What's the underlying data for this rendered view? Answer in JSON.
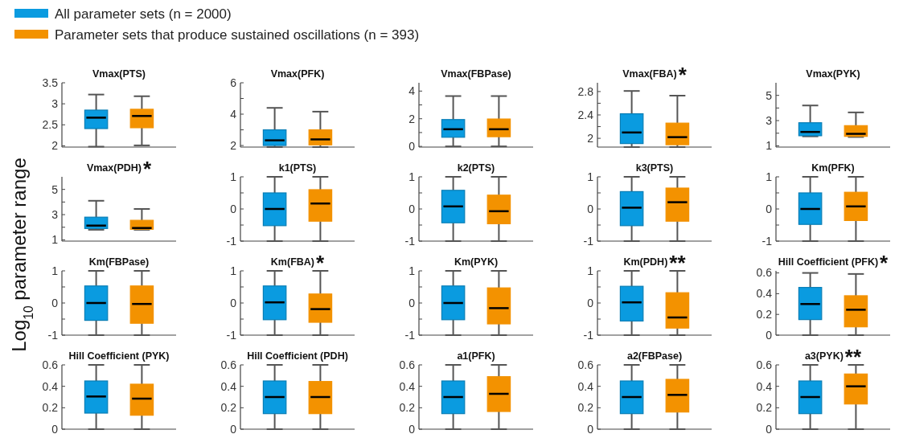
{
  "chart_data": [
    {
      "type": "box",
      "title": "Vmax(PTS)",
      "ylabel": "Log$_{10}$ parameter range",
      "legend": "top right",
      "categories": [
        null
      ],
      "ylim": [
        1.97,
        3.5
      ],
      "yticks": [
        2,
        2.5,
        3,
        3.5
      ],
      "series": [
        {
          "name": "All parameter sets (n = 2000)",
          "color": "#0a9be0",
          "boxes": [
            {
              "low": 1.98,
              "q1": 2.41,
              "median": 2.67,
              "q3": 2.85,
              "high": 3.22
            }
          ]
        },
        {
          "name": "Parameter sets that produce sustained oscillations (n = 393)",
          "color": "#f39200",
          "boxes": [
            {
              "low": 2.01,
              "q1": 2.43,
              "median": 2.71,
              "q3": 2.87,
              "high": 3.18
            }
          ]
        }
      ]
    },
    {
      "type": "box",
      "title": "Vmax(PFK)",
      "categories": [
        null
      ],
      "ylim": [
        1.9,
        6
      ],
      "yticks": [
        2,
        {
          "value": 3,
          "label": null
        },
        4,
        {
          "value": 5,
          "label": null
        },
        6
      ],
      "series": [
        {
          "color": "#0a9be0",
          "boxes": [
            {
              "low": 1.9,
              "q1": 2.0,
              "median": 2.33,
              "q3": 3.0,
              "high": 4.4
            }
          ]
        },
        {
          "color": "#f39200",
          "boxes": [
            {
              "low": 1.9,
              "q1": 2.04,
              "median": 2.39,
              "q3": 3.0,
              "high": 4.16
            }
          ]
        }
      ]
    },
    {
      "type": "box",
      "title": "Vmax(FBPase)",
      "categories": [
        null
      ],
      "ylim": [
        -0.05,
        4.6
      ],
      "yticks": [
        0,
        {
          "value": 1,
          "label": null
        },
        2,
        {
          "value": 3,
          "label": null
        },
        4
      ],
      "series": [
        {
          "color": "#0a9be0",
          "boxes": [
            {
              "low": 0,
              "q1": 0.66,
              "median": 1.24,
              "q3": 1.94,
              "high": 3.64
            }
          ]
        },
        {
          "color": "#f39200",
          "boxes": [
            {
              "low": 0,
              "q1": 0.7,
              "median": 1.24,
              "q3": 1.98,
              "high": 3.64
            }
          ]
        }
      ]
    },
    {
      "type": "box",
      "title": "Vmax(FBA)",
      "annotations": [
        "*"
      ],
      "categories": [
        null
      ],
      "ylim": [
        1.85,
        2.95
      ],
      "yticks": [
        2,
        {
          "value": 2.2,
          "label": null
        },
        2.4,
        {
          "value": 2.6,
          "label": null
        },
        2.8
      ],
      "series": [
        {
          "color": "#0a9be0",
          "boxes": [
            {
              "low": 1.85,
              "q1": 1.91,
              "median": 2.1,
              "q3": 2.42,
              "high": 2.81
            }
          ]
        },
        {
          "color": "#f39200",
          "boxes": [
            {
              "low": 1.85,
              "q1": 1.89,
              "median": 2.02,
              "q3": 2.26,
              "high": 2.73
            }
          ]
        }
      ]
    },
    {
      "type": "box",
      "title": "Vmax(PYK)",
      "categories": [
        null
      ],
      "ylim": [
        0.9,
        6
      ],
      "yticks": [
        1,
        {
          "value": 2,
          "label": null
        },
        3,
        {
          "value": 4,
          "label": null
        },
        5
      ],
      "series": [
        {
          "color": "#0a9be0",
          "boxes": [
            {
              "low": 1.75,
              "q1": 1.8,
              "median": 2.1,
              "q3": 2.83,
              "high": 4.2
            }
          ]
        },
        {
          "color": "#f39200",
          "boxes": [
            {
              "low": 1.7,
              "q1": 1.75,
              "median": 1.95,
              "q3": 2.6,
              "high": 3.65
            }
          ]
        }
      ]
    },
    {
      "type": "box",
      "title": "Vmax(PDH)",
      "annotations": [
        "*"
      ],
      "categories": [
        null
      ],
      "ylim": [
        0.9,
        6
      ],
      "yticks": [
        1,
        {
          "value": 2,
          "label": null
        },
        3,
        {
          "value": 4,
          "label": null
        },
        5
      ],
      "series": [
        {
          "color": "#0a9be0",
          "boxes": [
            {
              "low": 1.8,
              "q1": 1.9,
              "median": 2.13,
              "q3": 2.8,
              "high": 4.1
            }
          ]
        },
        {
          "color": "#f39200",
          "boxes": [
            {
              "low": 1.8,
              "q1": 1.84,
              "median": 1.94,
              "q3": 2.55,
              "high": 3.45
            }
          ]
        }
      ]
    },
    {
      "type": "box",
      "title": "k1(PTS)",
      "categories": [
        null
      ],
      "ylim": [
        -1,
        1
      ],
      "yticks": [
        -1,
        {
          "value": -0.5,
          "label": null
        },
        0,
        {
          "value": 0.5,
          "label": null
        },
        1
      ],
      "series": [
        {
          "color": "#0a9be0",
          "boxes": [
            {
              "low": -1,
              "q1": -0.52,
              "median": 0,
              "q3": 0.5,
              "high": 1
            }
          ]
        },
        {
          "color": "#f39200",
          "boxes": [
            {
              "low": -1,
              "q1": -0.38,
              "median": 0.17,
              "q3": 0.6,
              "high": 1
            }
          ]
        }
      ]
    },
    {
      "type": "box",
      "title": "k2(PTS)",
      "categories": [
        null
      ],
      "ylim": [
        -1,
        1
      ],
      "yticks": [
        -1,
        {
          "value": -0.5,
          "label": null
        },
        0,
        {
          "value": 0.5,
          "label": null
        },
        1
      ],
      "series": [
        {
          "color": "#0a9be0",
          "boxes": [
            {
              "low": -1,
              "q1": -0.43,
              "median": 0.08,
              "q3": 0.58,
              "high": 1
            }
          ]
        },
        {
          "color": "#f39200",
          "boxes": [
            {
              "low": -1,
              "q1": -0.46,
              "median": -0.07,
              "q3": 0.43,
              "high": 1
            }
          ]
        }
      ]
    },
    {
      "type": "box",
      "title": "k3(PTS)",
      "categories": [
        null
      ],
      "ylim": [
        -1,
        1
      ],
      "yticks": [
        -1,
        {
          "value": -0.5,
          "label": null
        },
        0,
        {
          "value": 0.5,
          "label": null
        },
        1
      ],
      "series": [
        {
          "color": "#0a9be0",
          "boxes": [
            {
              "low": -1,
              "q1": -0.52,
              "median": 0.04,
              "q3": 0.54,
              "high": 1
            }
          ]
        },
        {
          "color": "#f39200",
          "boxes": [
            {
              "low": -1,
              "q1": -0.38,
              "median": 0.21,
              "q3": 0.65,
              "high": 1
            }
          ]
        }
      ]
    },
    {
      "type": "box",
      "title": "Km(PFK)",
      "categories": [
        null
      ],
      "ylim": [
        -1,
        1
      ],
      "yticks": [
        -1,
        {
          "value": -0.5,
          "label": null
        },
        0,
        {
          "value": 0.5,
          "label": null
        },
        1
      ],
      "series": [
        {
          "color": "#0a9be0",
          "boxes": [
            {
              "low": -1,
              "q1": -0.48,
              "median": 0,
              "q3": 0.5,
              "high": 1
            }
          ]
        },
        {
          "color": "#f39200",
          "boxes": [
            {
              "low": -1,
              "q1": -0.36,
              "median": 0.08,
              "q3": 0.52,
              "high": 1
            }
          ]
        }
      ]
    },
    {
      "type": "box",
      "title": "Km(FBPase)",
      "categories": [
        null
      ],
      "ylim": [
        -1,
        1
      ],
      "yticks": [
        -1,
        {
          "value": -0.5,
          "label": null
        },
        0,
        {
          "value": 0.5,
          "label": null
        },
        1
      ],
      "series": [
        {
          "color": "#0a9be0",
          "boxes": [
            {
              "low": -1,
              "q1": -0.54,
              "median": 0,
              "q3": 0.53,
              "high": 1
            }
          ]
        },
        {
          "color": "#f39200",
          "boxes": [
            {
              "low": -1,
              "q1": -0.63,
              "median": -0.03,
              "q3": 0.53,
              "high": 1
            }
          ]
        }
      ]
    },
    {
      "type": "box",
      "title": "Km(FBA)",
      "annotations": [
        "*"
      ],
      "categories": [
        null
      ],
      "ylim": [
        -1,
        1
      ],
      "yticks": [
        -1,
        {
          "value": -0.5,
          "label": null
        },
        0,
        {
          "value": 0.5,
          "label": null
        },
        1
      ],
      "series": [
        {
          "color": "#0a9be0",
          "boxes": [
            {
              "low": -1,
              "q1": -0.52,
              "median": 0.02,
              "q3": 0.53,
              "high": 1
            }
          ]
        },
        {
          "color": "#f39200",
          "boxes": [
            {
              "low": -1,
              "q1": -0.6,
              "median": -0.19,
              "q3": 0.28,
              "high": 1
            }
          ]
        }
      ]
    },
    {
      "type": "box",
      "title": "Km(PYK)",
      "categories": [
        null
      ],
      "ylim": [
        -1,
        1
      ],
      "yticks": [
        -1,
        {
          "value": -0.5,
          "label": null
        },
        0,
        {
          "value": 0.5,
          "label": null
        },
        1
      ],
      "series": [
        {
          "color": "#0a9be0",
          "boxes": [
            {
              "low": -1,
              "q1": -0.52,
              "median": 0,
              "q3": 0.53,
              "high": 1
            }
          ]
        },
        {
          "color": "#f39200",
          "boxes": [
            {
              "low": -1,
              "q1": -0.65,
              "median": -0.16,
              "q3": 0.47,
              "high": 1
            }
          ]
        }
      ]
    },
    {
      "type": "box",
      "title": "Km(PDH)",
      "annotations": [
        "**"
      ],
      "categories": [
        null
      ],
      "ylim": [
        -1,
        1
      ],
      "yticks": [
        -1,
        {
          "value": -0.5,
          "label": null
        },
        0,
        {
          "value": 0.5,
          "label": null
        },
        1
      ],
      "series": [
        {
          "color": "#0a9be0",
          "boxes": [
            {
              "low": -1,
              "q1": -0.56,
              "median": 0.02,
              "q3": 0.52,
              "high": 1
            }
          ]
        },
        {
          "color": "#f39200",
          "boxes": [
            {
              "low": -1,
              "q1": -0.78,
              "median": -0.45,
              "q3": 0.32,
              "high": 1
            }
          ]
        }
      ]
    },
    {
      "type": "box",
      "title": "Hill Coefficient (PFK)",
      "annotations": [
        "*"
      ],
      "categories": [
        null
      ],
      "ylim": [
        0,
        0.62
      ],
      "yticks": [
        0,
        0.2,
        0.4,
        0.6
      ],
      "series": [
        {
          "color": "#0a9be0",
          "boxes": [
            {
              "low": 0,
              "q1": 0.15,
              "median": 0.3,
              "q3": 0.46,
              "high": 0.6
            }
          ]
        },
        {
          "color": "#f39200",
          "boxes": [
            {
              "low": 0,
              "q1": 0.08,
              "median": 0.245,
              "q3": 0.38,
              "high": 0.59
            }
          ]
        }
      ]
    },
    {
      "type": "box",
      "title": "Hill Coefficient (PYK)",
      "categories": [
        null
      ],
      "ylim": [
        0,
        0.6
      ],
      "yticks": [
        0,
        0.2,
        0.4,
        0.6
      ],
      "series": [
        {
          "color": "#0a9be0",
          "boxes": [
            {
              "low": 0,
              "q1": 0.15,
              "median": 0.305,
              "q3": 0.45,
              "high": 0.6
            }
          ]
        },
        {
          "color": "#f39200",
          "boxes": [
            {
              "low": 0,
              "q1": 0.13,
              "median": 0.285,
              "q3": 0.42,
              "high": 0.6
            }
          ]
        }
      ]
    },
    {
      "type": "box",
      "title": "Hill Coefficient (PDH)",
      "categories": [
        null
      ],
      "ylim": [
        0,
        0.6
      ],
      "yticks": [
        0,
        0.2,
        0.4,
        0.6
      ],
      "series": [
        {
          "color": "#0a9be0",
          "boxes": [
            {
              "low": 0,
              "q1": 0.145,
              "median": 0.3,
              "q3": 0.45,
              "high": 0.6
            }
          ]
        },
        {
          "color": "#f39200",
          "boxes": [
            {
              "low": 0,
              "q1": 0.145,
              "median": 0.3,
              "q3": 0.445,
              "high": 0.6
            }
          ]
        }
      ]
    },
    {
      "type": "box",
      "title": "a1(PFK)",
      "categories": [
        null
      ],
      "ylim": [
        0,
        0.6
      ],
      "yticks": [
        0,
        0.2,
        0.4,
        0.6
      ],
      "series": [
        {
          "color": "#0a9be0",
          "boxes": [
            {
              "low": 0,
              "q1": 0.145,
              "median": 0.3,
              "q3": 0.45,
              "high": 0.6
            }
          ]
        },
        {
          "color": "#f39200",
          "boxes": [
            {
              "low": 0,
              "q1": 0.165,
              "median": 0.33,
              "q3": 0.49,
              "high": 0.6
            }
          ]
        }
      ]
    },
    {
      "type": "box",
      "title": "a2(FBPase)",
      "categories": [
        null
      ],
      "ylim": [
        0,
        0.6
      ],
      "yticks": [
        0,
        0.2,
        0.4,
        0.6
      ],
      "series": [
        {
          "color": "#0a9be0",
          "boxes": [
            {
              "low": 0,
              "q1": 0.145,
              "median": 0.3,
              "q3": 0.45,
              "high": 0.6
            }
          ]
        },
        {
          "color": "#f39200",
          "boxes": [
            {
              "low": 0,
              "q1": 0.16,
              "median": 0.32,
              "q3": 0.465,
              "high": 0.6
            }
          ]
        }
      ]
    },
    {
      "type": "box",
      "title": "a3(PYK)",
      "annotations": [
        "**"
      ],
      "categories": [
        null
      ],
      "ylim": [
        0,
        0.6
      ],
      "yticks": [
        0,
        0.2,
        0.4,
        0.6
      ],
      "series": [
        {
          "color": "#0a9be0",
          "boxes": [
            {
              "low": 0,
              "q1": 0.145,
              "median": 0.3,
              "q3": 0.45,
              "high": 0.6
            }
          ]
        },
        {
          "color": "#f39200",
          "boxes": [
            {
              "low": 0,
              "q1": 0.235,
              "median": 0.4,
              "q3": 0.515,
              "high": 0.6
            }
          ]
        }
      ]
    }
  ]
}
